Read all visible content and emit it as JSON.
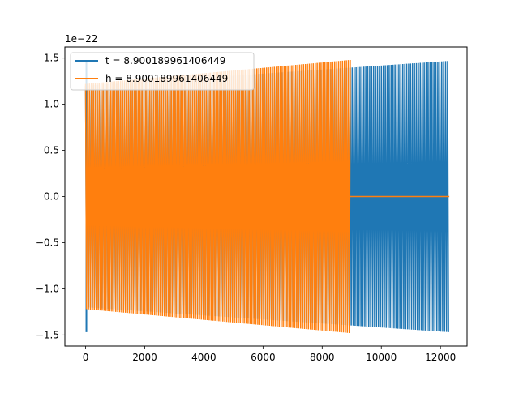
{
  "chart_data": {
    "type": "line",
    "title": "",
    "xlabel": "",
    "ylabel": "",
    "y_offset_label": "1e−22",
    "xlim": [
      -700,
      12900
    ],
    "ylim": [
      -1.62,
      1.62
    ],
    "x_ticks": [
      0,
      2000,
      4000,
      6000,
      8000,
      10000,
      12000
    ],
    "x_tick_labels": [
      "0",
      "2000",
      "4000",
      "6000",
      "8000",
      "10000",
      "12000"
    ],
    "y_ticks": [
      -1.5,
      -1.0,
      -0.5,
      0.0,
      0.5,
      1.0,
      1.5
    ],
    "y_tick_labels": [
      "−1.5",
      "−1.0",
      "−0.5",
      "0.0",
      "0.5",
      "1.0",
      "1.5"
    ],
    "grid": false,
    "legend_position": "top-left",
    "series": [
      {
        "name": "t = 8.900189961406449",
        "color": "#1f77b4",
        "x_start": 0,
        "x_end": 12300,
        "envelope": {
          "initial_spike": 1.47,
          "start_amplitude": 1.2,
          "end_amplitude": 1.47
        }
      },
      {
        "name": "h = 8.900189961406449",
        "color": "#ff7f0e",
        "x_start": 0,
        "x_end": 12300,
        "active_end": 8950,
        "after_active_value": 0.0,
        "envelope": {
          "start_amplitude": 1.22,
          "end_amplitude": 1.48
        }
      }
    ]
  }
}
